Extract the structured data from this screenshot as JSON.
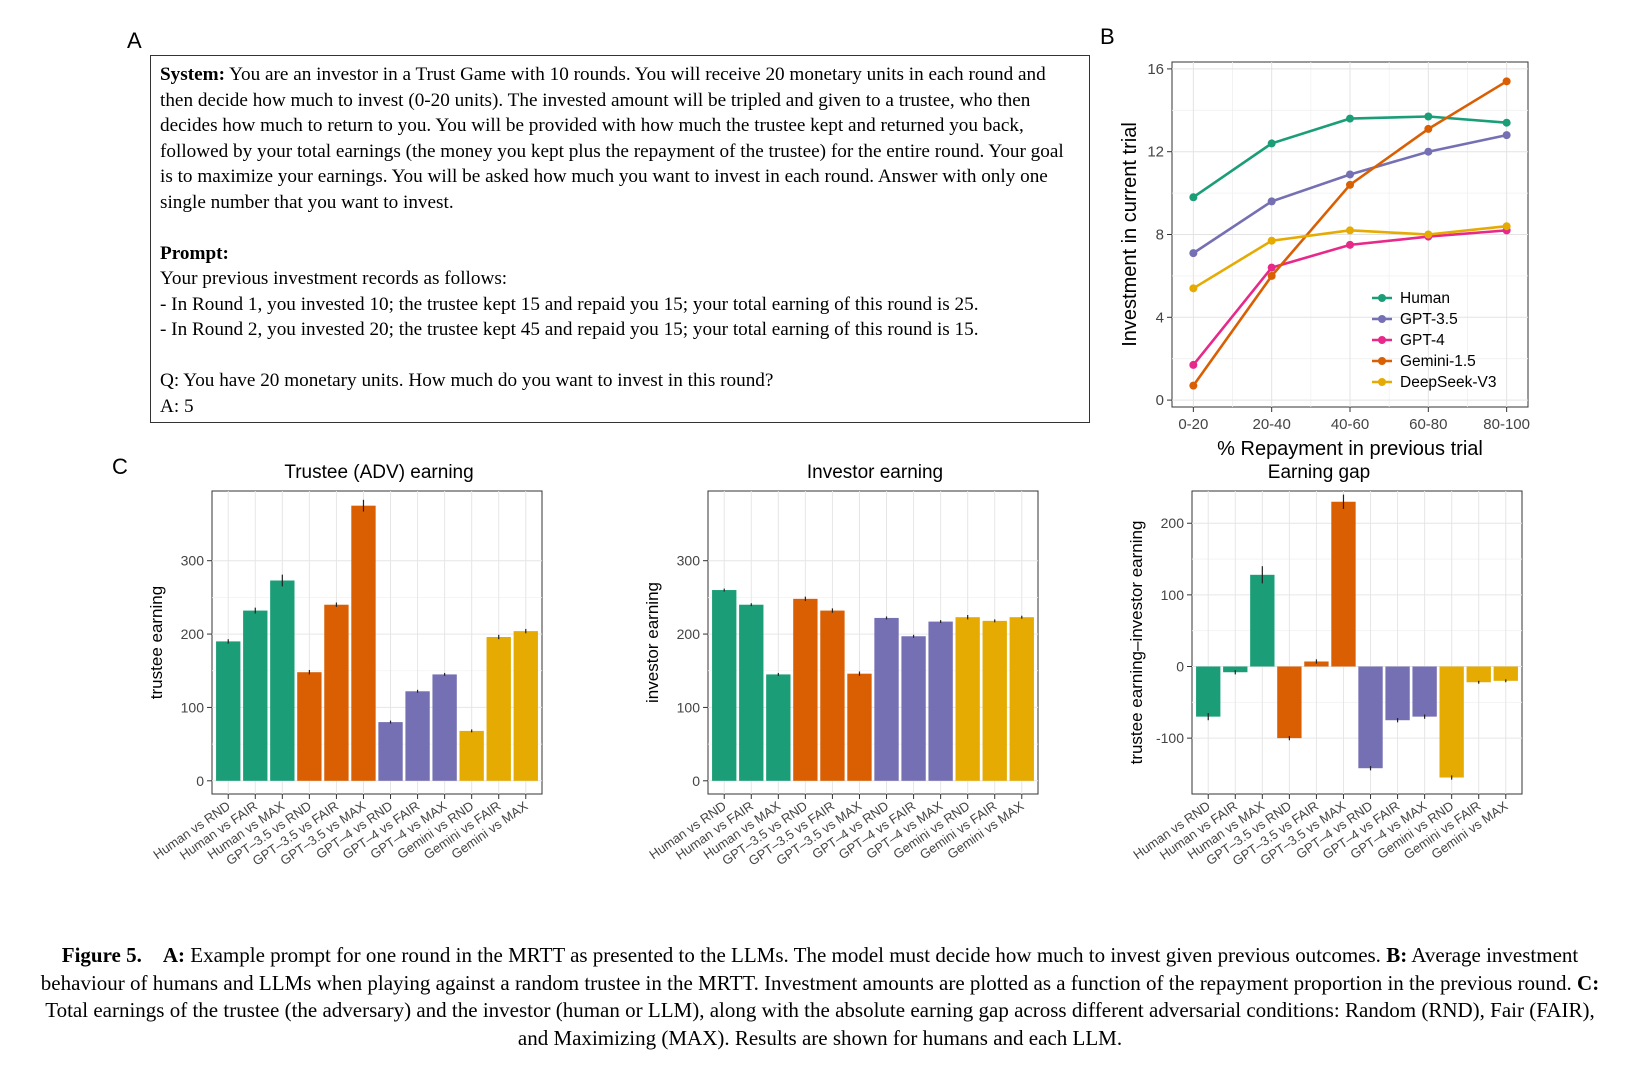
{
  "panels": {
    "a": "A",
    "b": "B",
    "c": "C"
  },
  "prompt_box": {
    "system_label": "System:",
    "system_text": "You are an investor in a Trust Game with 10 rounds. You will receive 20 monetary units in each round and then decide how much to invest (0-20 units). The invested amount will be tripled and given to a trustee, who then decides how much to return to you. You will be provided with how much the trustee kept and returned you back, followed by your total earnings (the money you kept plus the repayment of the trustee) for the entire round. Your goal is to maximize your earnings. You will be asked how much you want to invest in each round. Answer with only one single number that you want to invest.",
    "prompt_label": "Prompt:",
    "records_intro": "Your previous investment records as follows:",
    "round1": "- In Round 1, you invested 10; the trustee kept 15 and repaid you 15; your total earning of this round is 25.",
    "round2": "- In Round 2, you invested 20; the trustee kept 45 and repaid you 15; your total earning of this round is 15.",
    "question": "Q: You have 20 monetary units. How much do you want to invest in this round?",
    "answer": "A: 5"
  },
  "caption": {
    "fig_label": "Figure 5.",
    "a_label": "A:",
    "a_text": "Example prompt for one round in the MRTT as presented to the LLMs. The model must decide how much to invest given previous outcomes.",
    "b_label": "B:",
    "b_text": "Average investment behaviour of humans and LLMs when playing against a random trustee in the MRTT. Investment amounts are plotted as a function of the repayment proportion in the previous round.",
    "c_label": "C:",
    "c_text": "Total earnings of the trustee (the adversary) and the investor (human or LLM), along with the absolute earning gap across different adversarial conditions: Random (RND), Fair (FAIR), and Maximizing (MAX). Results are shown for humans and each LLM."
  },
  "colors": {
    "human": "#1b9e77",
    "gpt35": "#7570b3",
    "gpt4": "#e7298a",
    "gemini": "#d95f02",
    "deepseek": "#e6ab02"
  },
  "chart_data": [
    {
      "type": "line",
      "xlabel": "% Repayment in previous trial",
      "ylabel": "Investment in current trial",
      "x": [
        "0-20",
        "20-40",
        "40-60",
        "60-80",
        "80-100"
      ],
      "ylim": [
        0,
        16
      ],
      "yticks": [
        0,
        4,
        8,
        12,
        16
      ],
      "grid": true,
      "legend_position": "bottom-right",
      "series": [
        {
          "name": "Human",
          "color": "#1b9e77",
          "values": [
            9.8,
            12.4,
            13.6,
            13.7,
            13.4
          ]
        },
        {
          "name": "GPT-3.5",
          "color": "#7570b3",
          "values": [
            7.1,
            9.6,
            10.9,
            12.0,
            12.8
          ]
        },
        {
          "name": "GPT-4",
          "color": "#e7298a",
          "values": [
            1.7,
            6.4,
            7.5,
            7.9,
            8.2
          ]
        },
        {
          "name": "Gemini-1.5",
          "color": "#d95f02",
          "values": [
            0.7,
            6.0,
            10.4,
            13.1,
            15.4
          ]
        },
        {
          "name": "DeepSeek-V3",
          "color": "#e6ab02",
          "values": [
            5.4,
            7.7,
            8.2,
            8.0,
            8.4
          ]
        }
      ]
    },
    {
      "type": "bar",
      "title": "Trustee (ADV) earning",
      "ylabel": "trustee earning",
      "categories": [
        "Human vs RND",
        "Human vs FAIR",
        "Human vs MAX",
        "GPT–3.5 vs RND",
        "GPT–3.5 vs FAIR",
        "GPT–3.5 vs MAX",
        "GPT–4 vs RND",
        "GPT–4 vs FAIR",
        "GPT–4 vs MAX",
        "Gemini vs RND",
        "Gemini vs FAIR",
        "Gemini vs MAX"
      ],
      "values": [
        190,
        232,
        273,
        148,
        240,
        375,
        80,
        122,
        145,
        68,
        196,
        204
      ],
      "errors": [
        3,
        4,
        8,
        3,
        3,
        8,
        2,
        2,
        2,
        2,
        3,
        3
      ],
      "bar_colors": [
        "#1b9e77",
        "#1b9e77",
        "#1b9e77",
        "#d95f02",
        "#d95f02",
        "#d95f02",
        "#7570b3",
        "#7570b3",
        "#7570b3",
        "#e6ab02",
        "#e6ab02",
        "#e6ab02"
      ],
      "ylim": [
        -18,
        395
      ],
      "yticks": [
        0,
        100,
        200,
        300
      ],
      "grid": true
    },
    {
      "type": "bar",
      "title": "Investor earning",
      "ylabel": "investor earning",
      "categories": [
        "Human vs RND",
        "Human vs FAIR",
        "Human vs MAX",
        "GPT–3.5 vs RND",
        "GPT–3.5 vs FAIR",
        "GPT–3.5 vs MAX",
        "GPT–4 vs RND",
        "GPT–4 vs FAIR",
        "GPT–4 vs MAX",
        "Gemini vs RND",
        "Gemini vs FAIR",
        "Gemini vs MAX"
      ],
      "values": [
        260,
        240,
        145,
        248,
        232,
        146,
        222,
        197,
        217,
        223,
        218,
        223
      ],
      "errors": [
        2,
        2,
        2,
        3,
        3,
        3,
        2,
        2,
        2,
        3,
        2,
        2
      ],
      "bar_colors": [
        "#1b9e77",
        "#1b9e77",
        "#1b9e77",
        "#d95f02",
        "#d95f02",
        "#d95f02",
        "#7570b3",
        "#7570b3",
        "#7570b3",
        "#e6ab02",
        "#e6ab02",
        "#e6ab02"
      ],
      "ylim": [
        -18,
        395
      ],
      "yticks": [
        0,
        100,
        200,
        300
      ],
      "grid": true
    },
    {
      "type": "bar",
      "title": "Earning gap",
      "ylabel": "trustee earning–investor earning",
      "categories": [
        "Human vs RND",
        "Human vs FAIR",
        "Human vs MAX",
        "GPT–3.5 vs RND",
        "GPT–3.5 vs FAIR",
        "GPT–3.5 vs MAX",
        "GPT–4 vs RND",
        "GPT–4 vs FAIR",
        "GPT–4 vs MAX",
        "Gemini vs RND",
        "Gemini vs FAIR",
        "Gemini vs MAX"
      ],
      "values": [
        -70,
        -8,
        128,
        -100,
        7,
        230,
        -142,
        -75,
        -70,
        -155,
        -22,
        -20
      ],
      "errors": [
        5,
        3,
        12,
        3,
        3,
        10,
        3,
        3,
        3,
        3,
        2,
        2
      ],
      "bar_colors": [
        "#1b9e77",
        "#1b9e77",
        "#1b9e77",
        "#d95f02",
        "#d95f02",
        "#d95f02",
        "#7570b3",
        "#7570b3",
        "#7570b3",
        "#e6ab02",
        "#e6ab02",
        "#e6ab02"
      ],
      "ylim": [
        -178,
        245
      ],
      "yticks": [
        -100,
        0,
        100,
        200
      ],
      "grid": true
    }
  ]
}
